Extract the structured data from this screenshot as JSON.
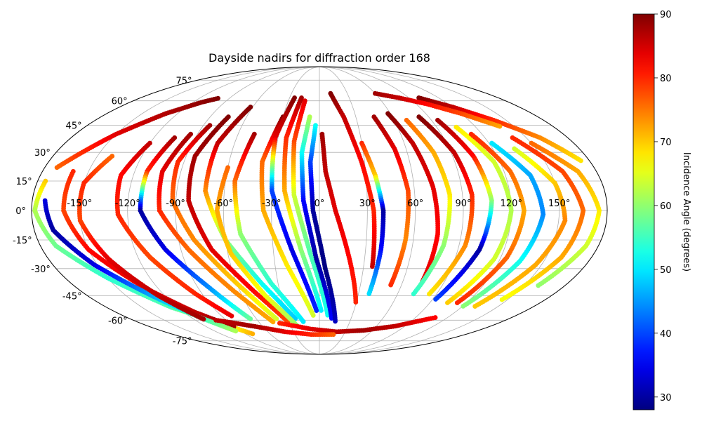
{
  "chart_data": {
    "type": "scatter",
    "projection": "mollweide",
    "title": "Dayside nadirs for diffraction order 168",
    "x_ticks": [
      -150,
      -120,
      -90,
      -60,
      -30,
      0,
      30,
      60,
      90,
      120,
      150
    ],
    "x_tick_labels": [
      "-150°",
      "-120°",
      "-90°",
      "-60°",
      "-30°",
      "0°",
      "30°",
      "60°",
      "90°",
      "120°",
      "150°"
    ],
    "y_ticks": [
      -75,
      -60,
      -45,
      -30,
      -15,
      0,
      15,
      30,
      45,
      60,
      75
    ],
    "y_tick_labels": [
      "-75°",
      "-60°",
      "-45°",
      "-30°",
      "-15°",
      "0°",
      "15°",
      "30°",
      "45°",
      "60°",
      "75°"
    ],
    "grid": true,
    "colormap": "jet",
    "colorbar": {
      "label": "Incidence Angle (degrees)",
      "range": [
        28,
        90
      ],
      "ticks": [
        30,
        40,
        50,
        60,
        70,
        80,
        90
      ],
      "tick_labels": [
        "30",
        "40",
        "50",
        "60",
        "70",
        "80",
        "90"
      ]
    },
    "tracks": [
      {
        "lon": [
          -172,
          -150,
          -130,
          -112,
          -100
        ],
        "lat": [
          22,
          40,
          52,
          59,
          62
        ],
        "incidence": [
          76,
          84,
          87,
          89,
          90
        ]
      },
      {
        "lon": [
          -175,
          -178,
          -170,
          -150,
          -125,
          -100,
          -80
        ],
        "lat": [
          15,
          0,
          -18,
          -35,
          -52,
          -62,
          -70
        ],
        "incidence": [
          70,
          62,
          58,
          54,
          56,
          64,
          72
        ]
      },
      {
        "lon": [
          -160,
          -160,
          -150,
          -130,
          -110,
          -90
        ],
        "lat": [
          20,
          0,
          -20,
          -40,
          -55,
          -65
        ],
        "incidence": [
          80,
          78,
          82,
          84,
          86,
          88
        ]
      },
      {
        "lon": [
          -172,
          -168,
          -152,
          -130,
          -112,
          -95
        ],
        "lat": [
          5,
          -10,
          -28,
          -45,
          -58,
          -68
        ],
        "incidence": [
          34,
          30,
          34,
          46,
          54,
          62
        ]
      },
      {
        "lon": [
          -140,
          -150,
          -150,
          -140,
          -125,
          -110
        ],
        "lat": [
          28,
          14,
          -5,
          -25,
          -45,
          -60
        ],
        "incidence": [
          76,
          80,
          78,
          84,
          86,
          88
        ]
      },
      {
        "lon": [
          -120,
          -128,
          -126,
          -112,
          -95,
          -80
        ],
        "lat": [
          35,
          18,
          -2,
          -24,
          -44,
          -58
        ],
        "incidence": [
          86,
          82,
          80,
          78,
          80,
          84
        ]
      },
      {
        "lon": [
          -105,
          -112,
          -112,
          -100,
          -82,
          -65
        ],
        "lat": [
          38,
          20,
          0,
          -20,
          -40,
          -60
        ],
        "incidence": [
          88,
          80,
          30,
          34,
          44,
          58
        ]
      },
      {
        "lon": [
          -95,
          -102,
          -100,
          -85,
          -65,
          -45
        ],
        "lat": [
          40,
          20,
          0,
          -20,
          -42,
          -62
        ],
        "incidence": [
          88,
          84,
          80,
          76,
          74,
          72
        ]
      },
      {
        "lon": [
          -85,
          -94,
          -92,
          -80,
          -60,
          -40
        ],
        "lat": [
          45,
          25,
          5,
          -15,
          -38,
          -60
        ],
        "incidence": [
          88,
          80,
          76,
          74,
          70,
          64
        ]
      },
      {
        "lon": [
          -75,
          -84,
          -82,
          -70,
          -50,
          -30
        ],
        "lat": [
          50,
          28,
          5,
          -20,
          -42,
          -62
        ],
        "incidence": [
          90,
          88,
          86,
          84,
          82,
          78
        ]
      },
      {
        "lon": [
          -62,
          -72,
          -72,
          -60,
          -42,
          -22
        ],
        "lat": [
          56,
          35,
          10,
          -15,
          -38,
          -60
        ],
        "incidence": [
          90,
          86,
          74,
          60,
          52,
          48
        ]
      },
      {
        "lon": [
          -60,
          -64,
          -58,
          -42,
          -22
        ],
        "lat": [
          22,
          0,
          -22,
          -45,
          -65
        ],
        "incidence": [
          76,
          72,
          70,
          66,
          60
        ]
      },
      {
        "lon": [
          -48,
          -54,
          -50,
          -35,
          -15
        ],
        "lat": [
          40,
          15,
          -12,
          -38,
          -62
        ],
        "incidence": [
          88,
          76,
          60,
          54,
          50
        ]
      },
      {
        "lon": [
          -30,
          -38,
          -35,
          -22,
          -5
        ],
        "lat": [
          50,
          25,
          0,
          -28,
          -58
        ],
        "incidence": [
          90,
          76,
          72,
          68,
          64
        ]
      },
      {
        "lon": [
          -25,
          -32,
          -30,
          -18,
          -2
        ],
        "lat": [
          62,
          38,
          10,
          -20,
          -55
        ],
        "incidence": [
          90,
          84,
          40,
          34,
          38
        ]
      },
      {
        "lon": [
          -18,
          -24,
          -22,
          -12,
          2
        ],
        "lat": [
          62,
          38,
          10,
          -20,
          -55
        ],
        "incidence": [
          88,
          80,
          72,
          60,
          50
        ]
      },
      {
        "lon": [
          -14,
          -18,
          -16,
          -6,
          8
        ],
        "lat": [
          60,
          36,
          8,
          -22,
          -58
        ],
        "incidence": [
          84,
          78,
          64,
          56,
          52
        ]
      },
      {
        "lon": [
          -8,
          -12,
          -10,
          -2,
          12
        ],
        "lat": [
          50,
          30,
          5,
          -25,
          -60
        ],
        "incidence": [
          62,
          52,
          36,
          30,
          36
        ]
      },
      {
        "lon": [
          -3,
          -6,
          -4,
          4,
          16
        ],
        "lat": [
          45,
          25,
          0,
          -30,
          -62
        ],
        "incidence": [
          52,
          40,
          30,
          28,
          32
        ]
      },
      {
        "lon": [
          2,
          4,
          10,
          20,
          30
        ],
        "lat": [
          40,
          20,
          0,
          -25,
          -50
        ],
        "incidence": [
          88,
          86,
          84,
          82,
          80
        ]
      },
      {
        "lon": [
          12,
          20,
          28,
          34,
          36
        ],
        "lat": [
          65,
          50,
          25,
          0,
          -30
        ],
        "incidence": [
          90,
          86,
          82,
          80,
          86
        ]
      },
      {
        "lon": [
          30,
          36,
          40,
          40,
          38
        ],
        "lat": [
          35,
          18,
          0,
          -20,
          -45
        ],
        "incidence": [
          80,
          70,
          30,
          36,
          50
        ]
      },
      {
        "lon": [
          45,
          52,
          56,
          55,
          52
        ],
        "lat": [
          50,
          32,
          10,
          -15,
          -40
        ],
        "incidence": [
          88,
          84,
          78,
          74,
          80
        ]
      },
      {
        "lon": [
          58,
          66,
          72,
          75,
          74
        ],
        "lat": [
          52,
          35,
          12,
          -12,
          -38
        ],
        "incidence": [
          90,
          86,
          84,
          82,
          84
        ]
      },
      {
        "lon": [
          70,
          78,
          82,
          80,
          72
        ],
        "lat": [
          48,
          30,
          8,
          -18,
          -45
        ],
        "incidence": [
          76,
          72,
          68,
          60,
          54
        ]
      },
      {
        "lon": [
          82,
          92,
          96,
          94,
          84
        ],
        "lat": [
          50,
          30,
          8,
          -18,
          -45
        ],
        "incidence": [
          90,
          86,
          80,
          74,
          68
        ]
      },
      {
        "lon": [
          95,
          104,
          108,
          104,
          92
        ],
        "lat": [
          48,
          28,
          5,
          -20,
          -48
        ],
        "incidence": [
          88,
          82,
          60,
          30,
          40
        ]
      },
      {
        "lon": [
          105,
          116,
          120,
          116,
          104
        ],
        "lat": [
          44,
          25,
          0,
          -25,
          -50
        ],
        "incidence": [
          68,
          64,
          62,
          64,
          70
        ]
      },
      {
        "lon": [
          112,
          124,
          128,
          124,
          112
        ],
        "lat": [
          40,
          20,
          0,
          -24,
          -50
        ],
        "incidence": [
          80,
          76,
          72,
          76,
          80
        ]
      },
      {
        "lon": [
          122,
          136,
          140,
          134,
          120
        ],
        "lat": [
          35,
          18,
          -2,
          -26,
          -52
        ],
        "incidence": [
          50,
          46,
          44,
          52,
          60
        ]
      },
      {
        "lon": [
          135,
          150,
          154,
          146,
          130
        ],
        "lat": [
          32,
          14,
          -5,
          -28,
          -52
        ],
        "incidence": [
          64,
          70,
          74,
          72,
          70
        ]
      },
      {
        "lon": [
          140,
          158,
          165,
          160,
          145
        ],
        "lat": [
          38,
          20,
          0,
          -24,
          -48
        ],
        "incidence": [
          80,
          78,
          76,
          72,
          66
        ]
      },
      {
        "lon": [
          150,
          168,
          175,
          172,
          160
        ],
        "lat": [
          35,
          20,
          0,
          -18,
          -40
        ],
        "incidence": [
          76,
          72,
          68,
          64,
          60
        ]
      },
      {
        "lon": [
          100,
          120,
          140,
          160,
          175
        ],
        "lat": [
          62,
          56,
          48,
          38,
          25
        ],
        "incidence": [
          90,
          86,
          80,
          74,
          68
        ]
      },
      {
        "lon": [
          60,
          80,
          100,
          120,
          140
        ],
        "lat": [
          65,
          62,
          58,
          52,
          44
        ],
        "incidence": [
          88,
          86,
          82,
          78,
          72
        ]
      },
      {
        "lon": [
          -40,
          -10,
          20,
          50,
          80,
          110
        ],
        "lat": [
          -62,
          -66,
          -68,
          -67,
          -64,
          -58
        ],
        "incidence": [
          80,
          84,
          86,
          88,
          86,
          82
        ]
      },
      {
        "lon": [
          -100,
          -70,
          -40,
          -10,
          20
        ],
        "lat": [
          -60,
          -64,
          -68,
          -70,
          -70
        ],
        "incidence": [
          86,
          88,
          84,
          80,
          76
        ]
      }
    ]
  }
}
